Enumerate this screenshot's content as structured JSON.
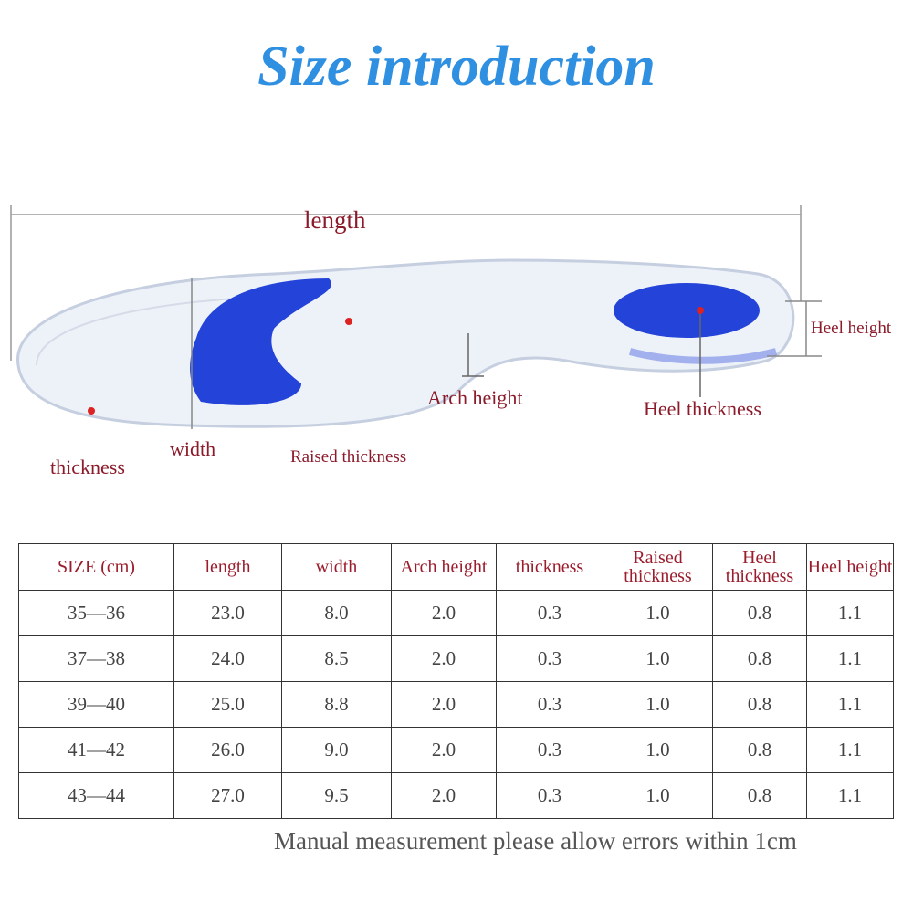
{
  "title": "Size introduction",
  "diagram": {
    "labels": {
      "length": "length",
      "heel_height": "Heel height",
      "arch_height": "Arch height",
      "heel_thickness": "Heel thickness",
      "thickness": "thickness",
      "width": "width",
      "raised_thickness": "Raised thickness"
    }
  },
  "table": {
    "header": [
      "SIZE (cm)",
      "length",
      "width",
      "Arch height",
      "thickness",
      "Raised thickness",
      "Heel thickness",
      "Heel height"
    ],
    "rows": [
      [
        "35—36",
        "23.0",
        "8.0",
        "2.0",
        "0.3",
        "1.0",
        "0.8",
        "1.1"
      ],
      [
        "37—38",
        "24.0",
        "8.5",
        "2.0",
        "0.3",
        "1.0",
        "0.8",
        "1.1"
      ],
      [
        "39—40",
        "25.0",
        "8.8",
        "2.0",
        "0.3",
        "1.0",
        "0.8",
        "1.1"
      ],
      [
        "41—42",
        "26.0",
        "9.0",
        "2.0",
        "0.3",
        "1.0",
        "0.8",
        "1.1"
      ],
      [
        "43—44",
        "27.0",
        "9.5",
        "2.0",
        "0.3",
        "1.0",
        "0.8",
        "1.1"
      ]
    ]
  },
  "footnote": "Manual measurement please allow errors within 1cm"
}
